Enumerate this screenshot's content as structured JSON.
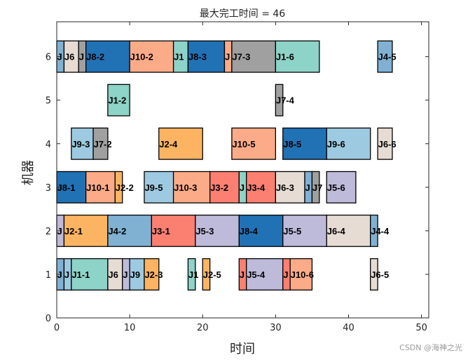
{
  "chart_data": {
    "type": "gantt",
    "title": "最大完工时间 = 46",
    "xlabel": "时间",
    "ylabel": "机器",
    "xlim": [
      0,
      51
    ],
    "ylim": [
      0,
      6.8
    ],
    "xticks": [
      0,
      10,
      20,
      30,
      40,
      50
    ],
    "yticks": [
      0,
      1,
      2,
      3,
      4,
      5,
      6
    ],
    "grid": false,
    "colors": {
      "J1": "#8dd3c7",
      "J2": "#fdb462",
      "J3": "#fb8072",
      "J4": "#80b1d3",
      "J5": "#bebada",
      "J6": "#e6dcd3",
      "J7": "#a0a0a0",
      "J8": "#2171b5",
      "J9": "#9ecae1",
      "J10": "#fcab88"
    },
    "tasks": [
      {
        "machine": 6,
        "job": "J4",
        "label": "J",
        "start": 0,
        "end": 1
      },
      {
        "machine": 6,
        "job": "J6",
        "label": "J6",
        "start": 1,
        "end": 3
      },
      {
        "machine": 6,
        "job": "J7",
        "label": "J",
        "start": 3,
        "end": 4
      },
      {
        "machine": 6,
        "job": "J8",
        "label": "J8-2",
        "start": 4,
        "end": 10
      },
      {
        "machine": 6,
        "job": "J10",
        "label": "J10-2",
        "start": 10,
        "end": 16
      },
      {
        "machine": 6,
        "job": "J1",
        "label": "J1",
        "start": 16,
        "end": 18
      },
      {
        "machine": 6,
        "job": "J8",
        "label": "J8-3",
        "start": 18,
        "end": 23
      },
      {
        "machine": 6,
        "job": "J10",
        "label": "J",
        "start": 23,
        "end": 24
      },
      {
        "machine": 6,
        "job": "J7",
        "label": "J7-3",
        "start": 24,
        "end": 30
      },
      {
        "machine": 6,
        "job": "J1",
        "label": "J1-6",
        "start": 30,
        "end": 36
      },
      {
        "machine": 6,
        "job": "J4",
        "label": "J4-5",
        "start": 44,
        "end": 46
      },
      {
        "machine": 5,
        "job": "J1",
        "label": "J1-2",
        "start": 7,
        "end": 10
      },
      {
        "machine": 5,
        "job": "J7",
        "label": "J7-4",
        "start": 30,
        "end": 31
      },
      {
        "machine": 4,
        "job": "J9",
        "label": "J9-3",
        "start": 2,
        "end": 5
      },
      {
        "machine": 4,
        "job": "J7",
        "label": "J7-2",
        "start": 5,
        "end": 7
      },
      {
        "machine": 4,
        "job": "J2",
        "label": "J2-4",
        "start": 14,
        "end": 20
      },
      {
        "machine": 4,
        "job": "J10",
        "label": "J10-5",
        "start": 24,
        "end": 30
      },
      {
        "machine": 4,
        "job": "J8",
        "label": "J8-5",
        "start": 31,
        "end": 37
      },
      {
        "machine": 4,
        "job": "J9",
        "label": "J9-6",
        "start": 37,
        "end": 43
      },
      {
        "machine": 4,
        "job": "J6",
        "label": "J6-6",
        "start": 44,
        "end": 46
      },
      {
        "machine": 3,
        "job": "J8",
        "label": "J8-1",
        "start": 0,
        "end": 4
      },
      {
        "machine": 3,
        "job": "J10",
        "label": "J10-1",
        "start": 4,
        "end": 8
      },
      {
        "machine": 3,
        "job": "J2",
        "label": "J2-2",
        "start": 8,
        "end": 9
      },
      {
        "machine": 3,
        "job": "J9",
        "label": "J9-5",
        "start": 12,
        "end": 16
      },
      {
        "machine": 3,
        "job": "J10",
        "label": "J10-3",
        "start": 16,
        "end": 21
      },
      {
        "machine": 3,
        "job": "J3",
        "label": "J3-2",
        "start": 21,
        "end": 25
      },
      {
        "machine": 3,
        "job": "J1",
        "label": "J",
        "start": 25,
        "end": 26
      },
      {
        "machine": 3,
        "job": "J3",
        "label": "J3-4",
        "start": 26,
        "end": 30
      },
      {
        "machine": 3,
        "job": "J6",
        "label": "J6-3",
        "start": 30,
        "end": 34
      },
      {
        "machine": 3,
        "job": "J4",
        "label": "J",
        "start": 34,
        "end": 35
      },
      {
        "machine": 3,
        "job": "J7",
        "label": "J7",
        "start": 35,
        "end": 36
      },
      {
        "machine": 3,
        "job": "J5",
        "label": "J5-6",
        "start": 37,
        "end": 41
      },
      {
        "machine": 2,
        "job": "J5",
        "label": "J",
        "start": 0,
        "end": 1
      },
      {
        "machine": 2,
        "job": "J2",
        "label": "J2-1",
        "start": 1,
        "end": 7
      },
      {
        "machine": 2,
        "job": "J4",
        "label": "J4-2",
        "start": 7,
        "end": 13
      },
      {
        "machine": 2,
        "job": "J3",
        "label": "J3-1",
        "start": 13,
        "end": 19
      },
      {
        "machine": 2,
        "job": "J5",
        "label": "J5-3",
        "start": 19,
        "end": 25
      },
      {
        "machine": 2,
        "job": "J8",
        "label": "J8-4",
        "start": 25,
        "end": 31
      },
      {
        "machine": 2,
        "job": "J5",
        "label": "J5-5",
        "start": 31,
        "end": 37
      },
      {
        "machine": 2,
        "job": "J6",
        "label": "J6-4",
        "start": 37,
        "end": 43
      },
      {
        "machine": 2,
        "job": "J4",
        "label": "J4-4",
        "start": 43,
        "end": 44
      },
      {
        "machine": 1,
        "job": "J4",
        "label": "J",
        "start": 0,
        "end": 1
      },
      {
        "machine": 1,
        "job": "J9",
        "label": "J",
        "start": 1,
        "end": 2
      },
      {
        "machine": 1,
        "job": "J1",
        "label": "J1-1",
        "start": 2,
        "end": 7
      },
      {
        "machine": 1,
        "job": "J6",
        "label": "J6",
        "start": 7,
        "end": 9
      },
      {
        "machine": 1,
        "job": "J5",
        "label": "J",
        "start": 9,
        "end": 10
      },
      {
        "machine": 1,
        "job": "J9",
        "label": "J9",
        "start": 10,
        "end": 12
      },
      {
        "machine": 1,
        "job": "J2",
        "label": "J2-3",
        "start": 12,
        "end": 14
      },
      {
        "machine": 1,
        "job": "J1",
        "label": "J1",
        "start": 18,
        "end": 19
      },
      {
        "machine": 1,
        "job": "J2",
        "label": "J2-5",
        "start": 20,
        "end": 21
      },
      {
        "machine": 1,
        "job": "J3",
        "label": "J",
        "start": 25,
        "end": 26
      },
      {
        "machine": 1,
        "job": "J5",
        "label": "J5-4",
        "start": 26,
        "end": 31
      },
      {
        "machine": 1,
        "job": "J3",
        "label": "J",
        "start": 31,
        "end": 32
      },
      {
        "machine": 1,
        "job": "J10",
        "label": "J10-6",
        "start": 32,
        "end": 35
      },
      {
        "machine": 1,
        "job": "J6",
        "label": "J6-5",
        "start": 43,
        "end": 44
      }
    ]
  },
  "watermark": "CSDN @海神之光"
}
